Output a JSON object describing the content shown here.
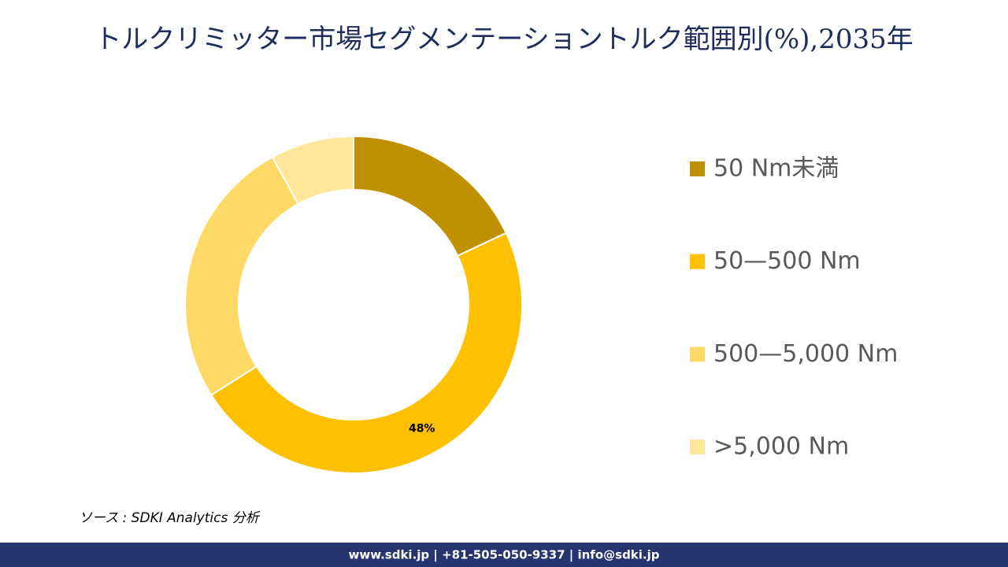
{
  "chart_data": {
    "type": "donut",
    "title": "トルクリミッター市場セグメンテーショントルク範囲別(%),2035年",
    "categories": [
      "50 Nm未満",
      "50—500 Nm",
      "500—5,000 Nm",
      ">5,000 Nm"
    ],
    "values": [
      18,
      48,
      26,
      8
    ],
    "value_labels": [
      null,
      "48%",
      null,
      null
    ],
    "colors": [
      "#bf9000",
      "#ffc000",
      "#ffd966",
      "#ffe699"
    ],
    "legend": "right"
  },
  "source": "ソース : SDKI Analytics  分析",
  "footer": "www.sdki.jp | +81-505-050-9337 | info@sdki.jp"
}
